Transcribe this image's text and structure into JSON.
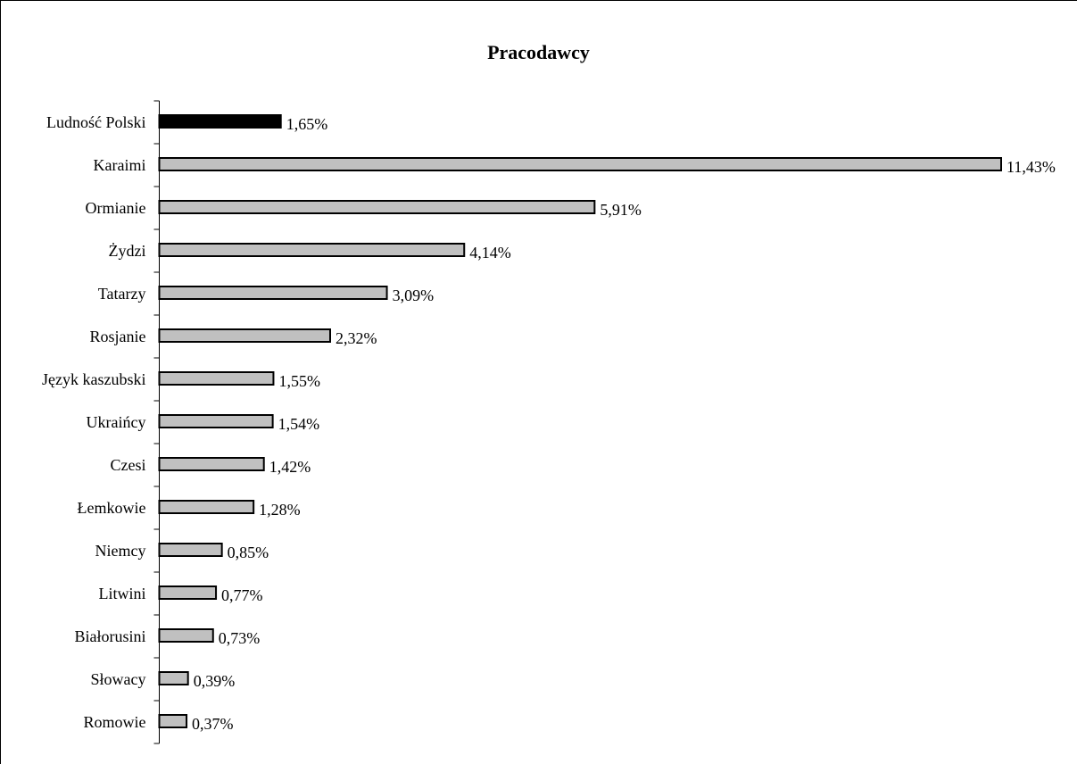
{
  "chart_data": {
    "type": "bar",
    "orientation": "horizontal",
    "title": "Pracodawcy",
    "xlabel": "",
    "ylabel": "",
    "xlim": [
      0,
      11.43
    ],
    "grid": false,
    "legend": "none",
    "categories": [
      "Ludność Polski",
      "Karaimi",
      "Ormianie",
      "Żydzi",
      "Tatarzy",
      "Rosjanie",
      "Język kaszubski",
      "Ukraińcy",
      "Czesi",
      "Łemkowie",
      "Niemcy",
      "Litwini",
      "Białorusini",
      "Słowacy",
      "Romowie"
    ],
    "values": [
      1.65,
      11.43,
      5.91,
      4.14,
      3.09,
      2.32,
      1.55,
      1.54,
      1.42,
      1.28,
      0.85,
      0.77,
      0.73,
      0.39,
      0.37
    ],
    "value_labels": [
      "1,65%",
      "11,43%",
      "5,91%",
      "4,14%",
      "3,09%",
      "2,32%",
      "1,55%",
      "1,54%",
      "1,42%",
      "1,28%",
      "0,85%",
      "0,77%",
      "0,73%",
      "0,39%",
      "0,37%"
    ],
    "bar_colors": [
      "#000000",
      "#c0c0c0",
      "#c0c0c0",
      "#c0c0c0",
      "#c0c0c0",
      "#c0c0c0",
      "#c0c0c0",
      "#c0c0c0",
      "#c0c0c0",
      "#c0c0c0",
      "#c0c0c0",
      "#c0c0c0",
      "#c0c0c0",
      "#c0c0c0",
      "#c0c0c0"
    ],
    "bar_outline_color": "#000000"
  }
}
